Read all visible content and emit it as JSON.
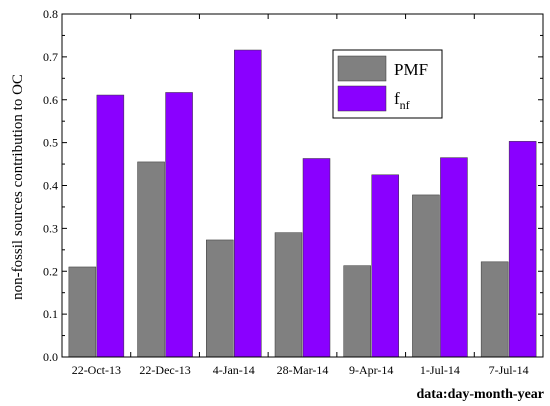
{
  "chart_data": {
    "type": "bar",
    "categories": [
      "22-Oct-13",
      "22-Dec-13",
      "4-Jan-14",
      "28-Mar-14",
      "9-Apr-14",
      "1-Jul-14",
      "7-Jul-14"
    ],
    "series": [
      {
        "name": "PMF",
        "color": "#808080",
        "values": [
          0.21,
          0.455,
          0.273,
          0.29,
          0.213,
          0.378,
          0.222
        ]
      },
      {
        "name": "f",
        "name_subscript": "nf",
        "color": "#8A00FF",
        "values": [
          0.611,
          0.617,
          0.716,
          0.463,
          0.425,
          0.465,
          0.503
        ]
      }
    ],
    "xlabel": "data:day-month-year",
    "ylabel": "non-fossil sources contribution to OC",
    "ylim": [
      0,
      0.8
    ],
    "yticks": [
      "0.0",
      "0.1",
      "0.2",
      "0.3",
      "0.4",
      "0.5",
      "0.6",
      "0.7",
      "0.8"
    ],
    "legend": {
      "position": "top-right",
      "entries": [
        "PMF",
        "fnf"
      ]
    },
    "grid": false
  }
}
